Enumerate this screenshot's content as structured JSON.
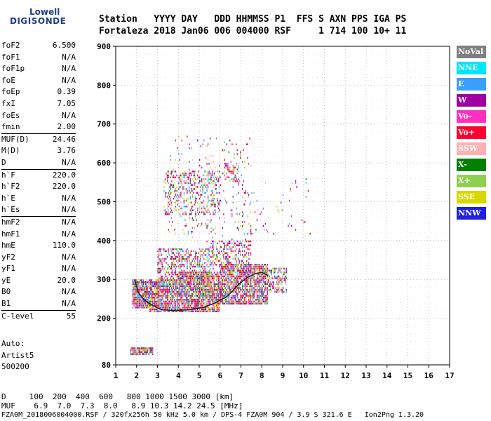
{
  "logo": {
    "line1": "Lowell",
    "line2": "DIGISONDE"
  },
  "header": {
    "row1": "Station   YYYY DAY   DDD HHMMSS P1  FFS S AXN PPS IGA PS",
    "row2": "Fortaleza 2018 Jan06 006 004000 RSF     1 714 100 10+ 11"
  },
  "params": [
    {
      "k": "foF2",
      "v": "6.500"
    },
    {
      "k": "foF1",
      "v": "N/A"
    },
    {
      "k": "foF1p",
      "v": "N/A"
    },
    {
      "k": "foE",
      "v": "N/A"
    },
    {
      "k": "foEp",
      "v": "0.39"
    },
    {
      "k": "fxI",
      "v": "7.05"
    },
    {
      "k": "foEs",
      "v": "N/A"
    },
    {
      "k": "fmin",
      "v": "2.00"
    },
    {
      "k": "MUF(D)",
      "v": "24.46"
    },
    {
      "k": "M(D)",
      "v": "3.76"
    },
    {
      "k": "D",
      "v": "N/A"
    },
    {
      "k": "h`F",
      "v": "220.0"
    },
    {
      "k": "h`F2",
      "v": "220.0"
    },
    {
      "k": "h`E",
      "v": "N/A"
    },
    {
      "k": "h`Es",
      "v": "N/A"
    },
    {
      "k": "hmF2",
      "v": "N/A"
    },
    {
      "k": "hmF1",
      "v": "N/A"
    },
    {
      "k": "hmE",
      "v": "110.0"
    },
    {
      "k": "yF2",
      "v": "N/A"
    },
    {
      "k": "yF1",
      "v": "N/A"
    },
    {
      "k": "yE",
      "v": "20.0"
    },
    {
      "k": "B0",
      "v": "N/A"
    },
    {
      "k": "B1",
      "v": "N/A"
    },
    {
      "k": "C-level",
      "v": "55"
    }
  ],
  "auto": {
    "l1": "Auto:",
    "l2": "Artist5",
    "l3": "500200"
  },
  "legend": [
    {
      "label": "NoVal",
      "color": "#808080"
    },
    {
      "label": "NNE",
      "color": "#00e5ff"
    },
    {
      "label": "E",
      "color": "#3aa0ff"
    },
    {
      "label": "W",
      "color": "#a000a0"
    },
    {
      "label": "Vo-",
      "color": "#ff30c0"
    },
    {
      "label": "Vo+",
      "color": "#ff0030"
    },
    {
      "label": "SSW",
      "color": "#ffb0b0"
    },
    {
      "label": "X-",
      "color": "#008000"
    },
    {
      "label": "X+",
      "color": "#90d050"
    },
    {
      "label": "SSE",
      "color": "#d8d800"
    },
    {
      "label": "NNW",
      "color": "#2020e0"
    }
  ],
  "bottom": {
    "d_row": "D     100  200  400  600   800 1000 1500 3000 [km]",
    "muf_row": "MUF    6.9  7.0  7.3  8.0   8.9 10.3 14.2 24.5 [MHz]",
    "footer": "FZA0M_2018006004000.RSF / 320fx256h 50 kHz 5.0 km / DPS-4 FZA0M 904 / 3.9 S 321.6 E   Ion2Png 1.3.20"
  },
  "chart_data": {
    "type": "scatter",
    "xlim": [
      1,
      17
    ],
    "ylim": [
      80,
      900
    ],
    "x_ticks": [
      1,
      2,
      3,
      4,
      5,
      6,
      7,
      8,
      9,
      10,
      11,
      12,
      13,
      14,
      15,
      16,
      17
    ],
    "y_ticks": [
      80,
      200,
      300,
      400,
      500,
      600,
      700,
      800,
      900
    ],
    "grid": true,
    "trace_x": [
      1.9,
      2.1,
      2.4,
      2.8,
      3.2,
      3.8,
      4.5,
      5.2,
      5.8,
      6.3,
      6.6,
      6.9,
      7.3,
      7.7,
      8.0,
      8.3
    ],
    "trace_y": [
      300,
      265,
      245,
      232,
      222,
      220,
      222,
      228,
      240,
      255,
      270,
      288,
      305,
      315,
      318,
      310
    ],
    "cluster_regions": [
      {
        "x": [
          1.8,
          2.6
        ],
        "y": [
          230,
          300
        ],
        "density": 0.9
      },
      {
        "x": [
          2.6,
          4.0
        ],
        "y": [
          220,
          300
        ],
        "density": 0.85
      },
      {
        "x": [
          4.0,
          6.0
        ],
        "y": [
          220,
          320
        ],
        "density": 0.85
      },
      {
        "x": [
          6.0,
          8.3
        ],
        "y": [
          240,
          340
        ],
        "density": 0.8
      },
      {
        "x": [
          8.3,
          9.2
        ],
        "y": [
          270,
          330
        ],
        "density": 0.5
      },
      {
        "x": [
          3.0,
          5.5
        ],
        "y": [
          300,
          380
        ],
        "density": 0.45
      },
      {
        "x": [
          5.5,
          7.5
        ],
        "y": [
          330,
          400
        ],
        "density": 0.35
      },
      {
        "x": [
          3.3,
          6.0
        ],
        "y": [
          470,
          580
        ],
        "density": 0.3
      },
      {
        "x": [
          6.2,
          6.9
        ],
        "y": [
          550,
          600
        ],
        "density": 0.35
      },
      {
        "x": [
          1.7,
          2.8
        ],
        "y": [
          110,
          125
        ],
        "density": 0.9
      },
      {
        "x": [
          3.5,
          7.5
        ],
        "y": [
          400,
          670
        ],
        "density": 0.05
      },
      {
        "x": [
          7.0,
          10.5
        ],
        "y": [
          420,
          560
        ],
        "density": 0.03
      }
    ]
  }
}
